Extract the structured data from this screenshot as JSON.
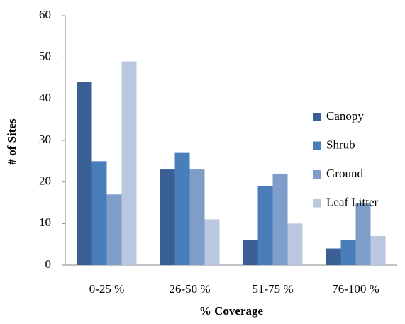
{
  "chart_data": {
    "type": "bar",
    "categories": [
      "0-25 %",
      "26-50 %",
      "51-75 %",
      "76-100 %"
    ],
    "series": [
      {
        "name": "Canopy",
        "color": "#3a5f94",
        "values": [
          44,
          23,
          6,
          4
        ]
      },
      {
        "name": "Shrub",
        "color": "#4a7ebb",
        "values": [
          25,
          27,
          19,
          6
        ]
      },
      {
        "name": "Ground",
        "color": "#7f9dc9",
        "values": [
          17,
          23,
          22,
          15
        ]
      },
      {
        "name": "Leaf Litter",
        "color": "#b9c7e0",
        "values": [
          49,
          11,
          10,
          7
        ]
      }
    ],
    "xlabel": "% Coverage",
    "ylabel": "# of Sites",
    "ylim": [
      0,
      60
    ],
    "yticks": [
      0,
      10,
      20,
      30,
      40,
      50,
      60
    ],
    "grid": false,
    "legend": "right"
  }
}
